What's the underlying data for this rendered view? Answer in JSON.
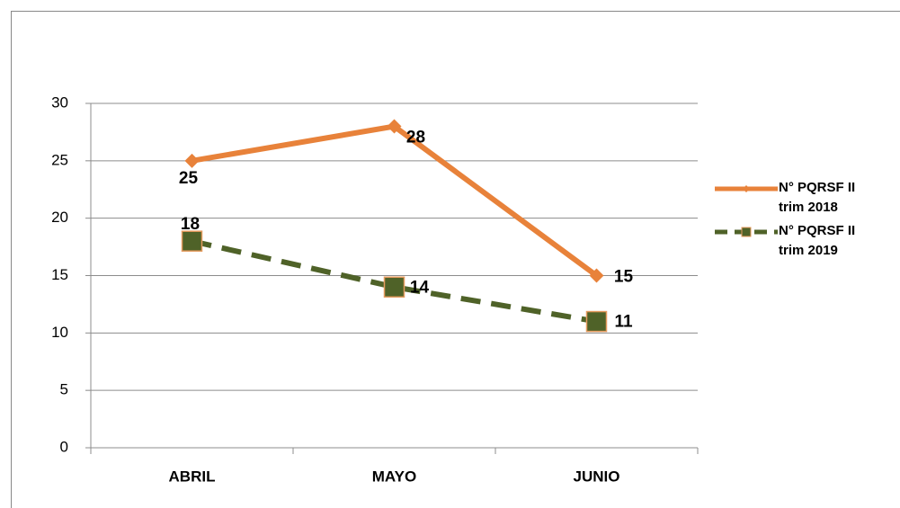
{
  "chart_data": {
    "type": "line",
    "categories": [
      "ABRIL",
      "MAYO",
      "JUNIO"
    ],
    "series": [
      {
        "name": "N° PQRSF II trim 2018",
        "color": "#e8823a",
        "values": [
          25,
          28,
          15
        ]
      },
      {
        "name": "N° PQRSF II trim 2019",
        "color": "#4f6228",
        "values": [
          18,
          14,
          11
        ]
      }
    ],
    "ylim": [
      0,
      30
    ],
    "yticks": [
      0,
      5,
      10,
      15,
      20,
      25,
      30
    ],
    "grid": true,
    "legend": "right"
  }
}
